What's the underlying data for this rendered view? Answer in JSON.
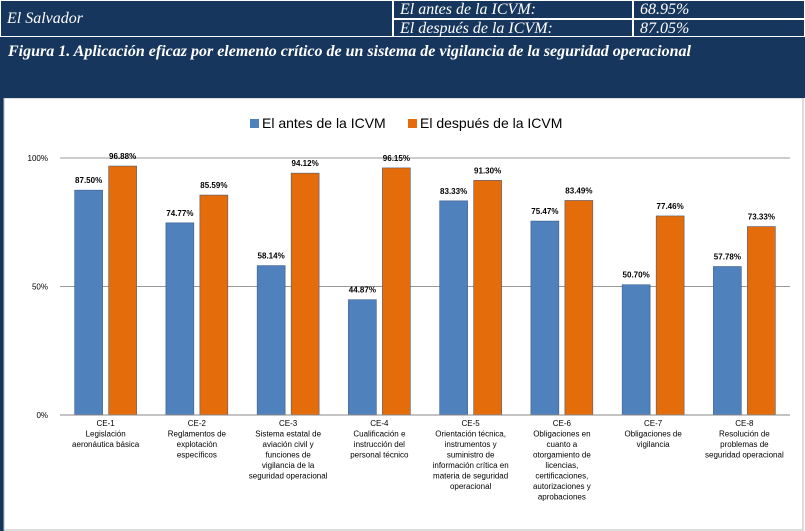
{
  "header": {
    "country": "El Salvador",
    "rows": [
      [
        "El antes de la ICVM:",
        "68.95%"
      ],
      [
        "El después de la ICVM:",
        "87.05%"
      ]
    ]
  },
  "chart_data": {
    "type": "bar",
    "title": "Figura 1. Aplicación eficaz por elemento crítico de un sistema de vigilancia de la seguridad operacional",
    "categories": [
      [
        "CE-1",
        "Legislación",
        "aeronáutica básica"
      ],
      [
        "CE-2",
        "Reglamentos de",
        "explotación",
        "específicos"
      ],
      [
        "CE-3",
        "Sistema estatal de",
        "aviación civil y",
        "funciones de",
        "vigilancia de la",
        "seguridad operacional"
      ],
      [
        "CE-4",
        "Cualificación e",
        "instrucción del",
        "personal técnico"
      ],
      [
        "CE-5",
        "Orientación técnica,",
        "instrumentos y",
        "suministro de",
        "información crítica en",
        "materia de seguridad",
        "operacional"
      ],
      [
        "CE-6",
        "Obligaciones en",
        "cuanto a",
        "otorgamiento de",
        "licencias,",
        "certificaciones,",
        "autorizaciones y",
        "aprobaciones"
      ],
      [
        "CE-7",
        "Obligaciones de",
        "vigilancia"
      ],
      [
        "CE-8",
        "Resolución de",
        "problemas de",
        "seguridad operacional"
      ]
    ],
    "series": [
      {
        "name": "El antes de la ICVM",
        "color": "#4f81bd",
        "values": [
          87.5,
          74.77,
          58.14,
          44.87,
          83.33,
          75.47,
          50.7,
          57.78
        ],
        "value_labels": [
          "87.50%",
          "74.77%",
          "58.14%",
          "44.87%",
          "83.33%",
          "75.47%",
          "50.70%",
          "57.78%"
        ]
      },
      {
        "name": "El después de la ICVM",
        "color": "#e46c0a",
        "values": [
          96.88,
          85.59,
          94.12,
          96.15,
          91.3,
          83.49,
          77.46,
          73.33
        ],
        "value_labels": [
          "96.88%",
          "85.59%",
          "94.12%",
          "96.15%",
          "91.30%",
          "83.49%",
          "77.46%",
          "73.33%"
        ]
      }
    ],
    "ylim": [
      0,
      100
    ],
    "yticks": [
      {
        "value": 0,
        "label": "0%"
      },
      {
        "value": 50,
        "label": "50%"
      },
      {
        "value": 100,
        "label": "100%"
      }
    ],
    "grid": true,
    "legend": "top"
  }
}
